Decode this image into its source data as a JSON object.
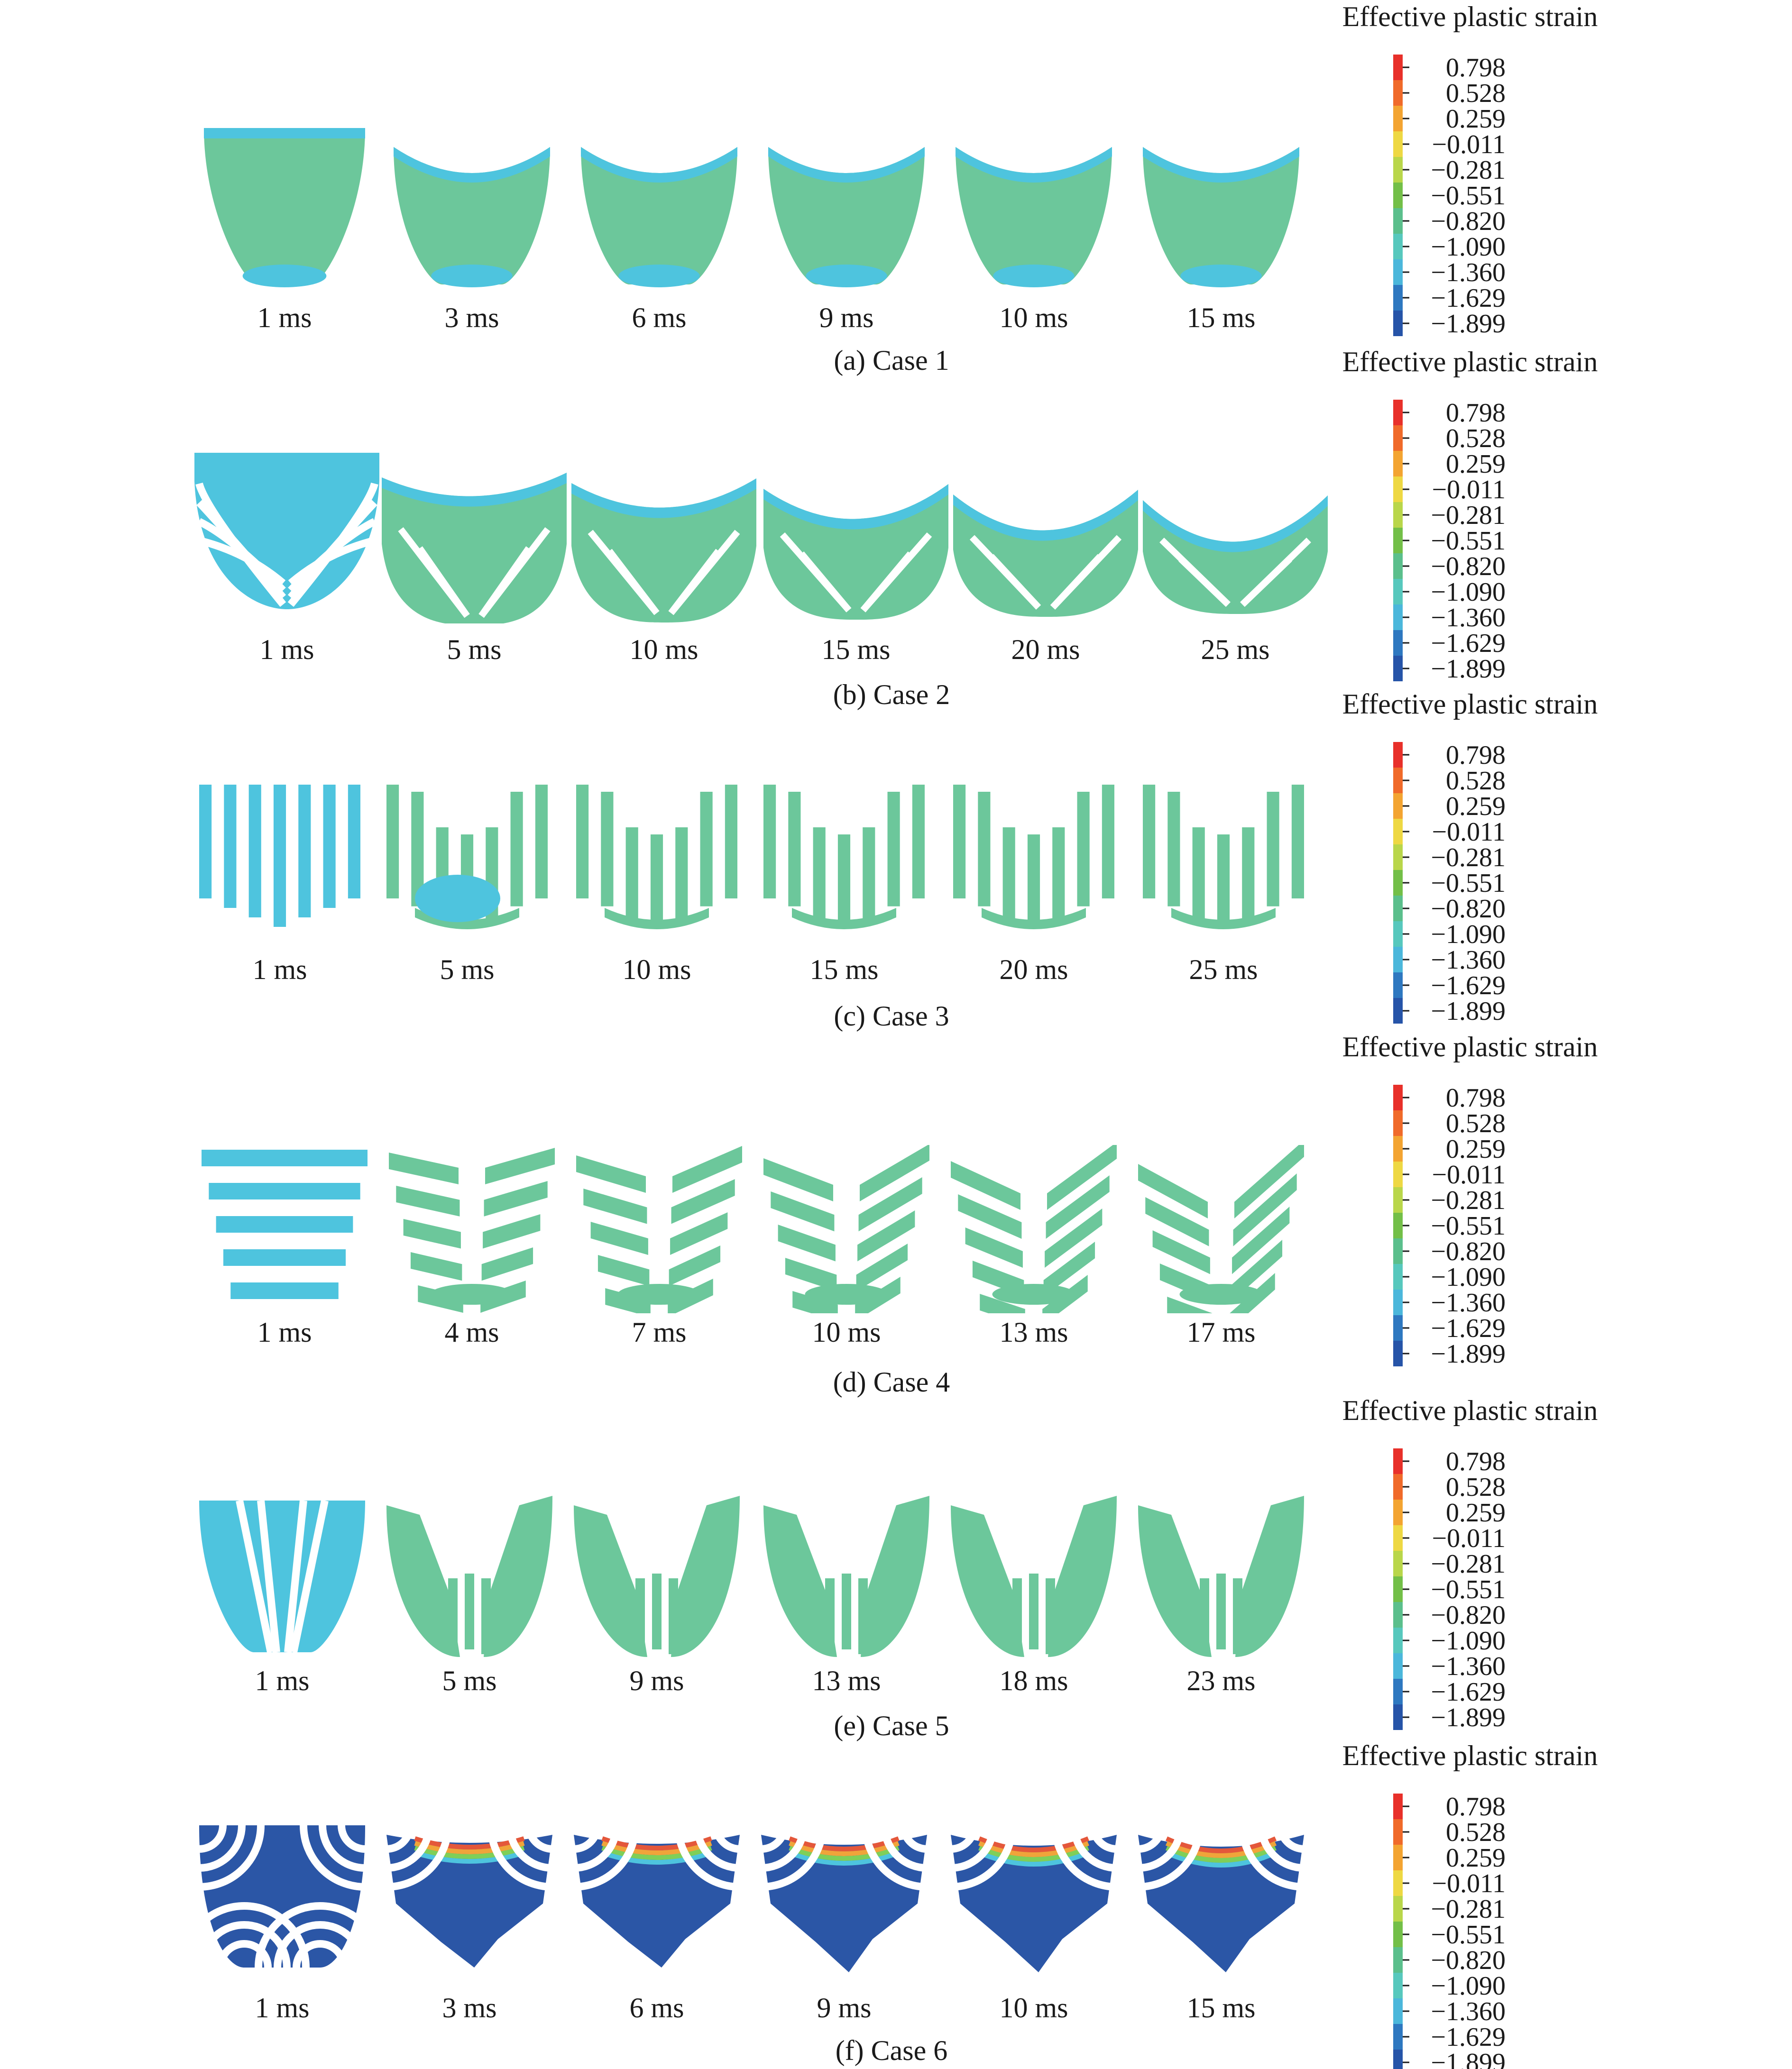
{
  "figure": {
    "legend": {
      "title": "Effective plastic strain",
      "values": [
        "0.798",
        "0.528",
        "0.259",
        "−0.011",
        "−0.281",
        "−0.551",
        "−0.820",
        "−1.090",
        "−1.360",
        "−1.629",
        "−1.899"
      ],
      "colors": [
        "#e8302a",
        "#f06a2a",
        "#f3a431",
        "#eed843",
        "#b9d64a",
        "#73bf48",
        "#5bbf8c",
        "#57c8bd",
        "#4bb7db",
        "#2e78c0",
        "#2654a8"
      ]
    },
    "palette": {
      "background_green": "#6cc79b",
      "light_blue": "#4ec4de",
      "dark_blue": "#2b56a6",
      "edge_green": "#7fcf58",
      "edge_orange": "#f0a43a",
      "edge_red": "#e4573a"
    },
    "panels": [
      {
        "id": "case1",
        "label": "(a) Case 1",
        "pattern": "solid",
        "times": [
          "1 ms",
          "3 ms",
          "6 ms",
          "9 ms",
          "10 ms",
          "15 ms"
        ]
      },
      {
        "id": "case2",
        "label": "(b) Case 2",
        "pattern": "curved-fan",
        "times": [
          "1 ms",
          "5 ms",
          "10 ms",
          "15 ms",
          "20 ms",
          "25 ms"
        ]
      },
      {
        "id": "case3",
        "label": "(c) Case 3",
        "pattern": "vertical-strips",
        "times": [
          "1 ms",
          "5 ms",
          "10 ms",
          "15 ms",
          "20 ms",
          "25 ms"
        ]
      },
      {
        "id": "case4",
        "label": "(d) Case 4",
        "pattern": "horizontal-bands",
        "times": [
          "1 ms",
          "4 ms",
          "7 ms",
          "10 ms",
          "13 ms",
          "17 ms"
        ]
      },
      {
        "id": "case5",
        "label": "(e) Case 5",
        "pattern": "converging-strips",
        "times": [
          "1 ms",
          "5 ms",
          "9 ms",
          "13 ms",
          "18 ms",
          "23 ms"
        ]
      },
      {
        "id": "case6",
        "label": "(f) Case 6",
        "pattern": "corner-arcs",
        "times": [
          "1 ms",
          "3 ms",
          "6 ms",
          "9 ms",
          "10 ms",
          "15 ms"
        ]
      }
    ]
  }
}
